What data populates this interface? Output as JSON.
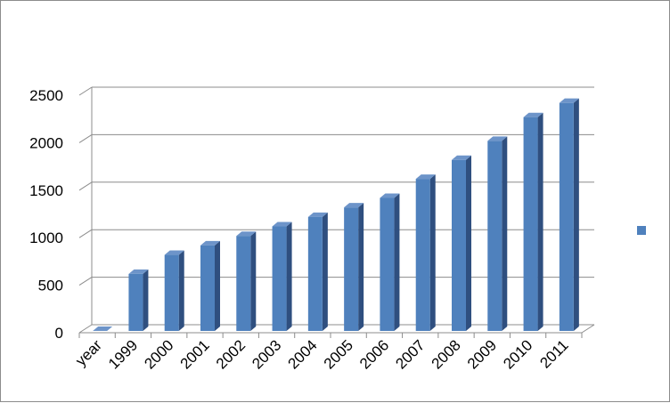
{
  "chart_data": {
    "type": "bar",
    "style": "3d-column",
    "categories": [
      "year",
      "1999",
      "2000",
      "2001",
      "2002",
      "2003",
      "2004",
      "2005",
      "2006",
      "2007",
      "2008",
      "2009",
      "2010",
      "2011"
    ],
    "series": [
      {
        "values": [
          0,
          600,
          800,
          900,
          1000,
          1100,
          1200,
          1300,
          1400,
          1600,
          1800,
          2000,
          2250,
          2400
        ],
        "color": "#4f81bd"
      }
    ],
    "ylim": [
      0,
      2500
    ],
    "yticks": [
      0,
      500,
      1000,
      1500,
      2000,
      2500
    ],
    "grid": true,
    "legend_position": "right",
    "legend": {
      "swatch_color": "#4f81bd"
    },
    "colors": {
      "bar_front": "#4f81bd",
      "bar_side": "#2f4f7f",
      "bar_top": "#6d94c9",
      "gridline": "#8c8c8c",
      "border": "#8c8c8c"
    }
  }
}
